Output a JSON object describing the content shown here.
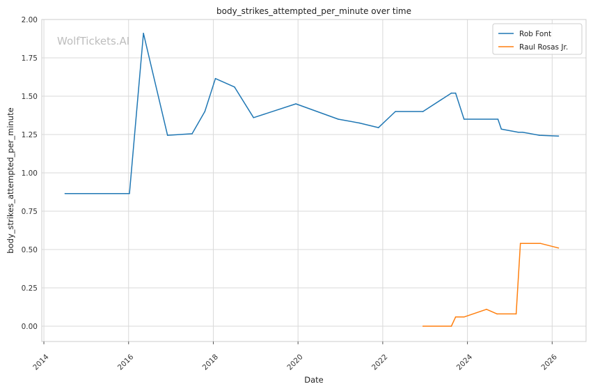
{
  "chart_data": {
    "type": "line",
    "title": "body_strikes_attempted_per_minute over time",
    "xlabel": "Date",
    "ylabel": "body_strikes_attempted_per_minute",
    "xlim": [
      2013.95,
      2026.8
    ],
    "ylim": [
      -0.1,
      2.0
    ],
    "x_ticks": [
      2014,
      2016,
      2018,
      2020,
      2022,
      2024,
      2026
    ],
    "y_ticks": [
      0.0,
      0.25,
      0.5,
      0.75,
      1.0,
      1.25,
      1.5,
      1.75,
      2.0
    ],
    "y_tick_labels": [
      "0.00",
      "0.25",
      "0.50",
      "0.75",
      "1.00",
      "1.25",
      "1.50",
      "1.75",
      "2.00"
    ],
    "grid": true,
    "legend_position": "top-right",
    "watermark": "WolfTickets.AI",
    "series": [
      {
        "name": "Rob Font",
        "color": "#1f77b4",
        "x": [
          2014.5,
          2016.02,
          2016.35,
          2016.92,
          2017.5,
          2017.8,
          2018.05,
          2018.5,
          2018.95,
          2019.95,
          2020.95,
          2021.45,
          2021.9,
          2022.3,
          2022.95,
          2023.62,
          2023.72,
          2023.92,
          2024.72,
          2024.8,
          2025.2,
          2025.3,
          2025.7,
          2026.15
        ],
        "values": [
          0.865,
          0.865,
          1.91,
          1.245,
          1.255,
          1.4,
          1.615,
          1.56,
          1.36,
          1.45,
          1.35,
          1.325,
          1.295,
          1.4,
          1.4,
          1.52,
          1.52,
          1.35,
          1.35,
          1.285,
          1.265,
          1.265,
          1.245,
          1.24
        ]
      },
      {
        "name": "Raul Rosas Jr.",
        "color": "#ff7f0e",
        "x": [
          2022.95,
          2023.62,
          2023.72,
          2023.92,
          2024.45,
          2024.7,
          2025.15,
          2025.25,
          2025.72,
          2026.15
        ],
        "values": [
          0.0,
          0.0,
          0.06,
          0.06,
          0.11,
          0.08,
          0.08,
          0.54,
          0.54,
          0.51
        ]
      }
    ]
  }
}
